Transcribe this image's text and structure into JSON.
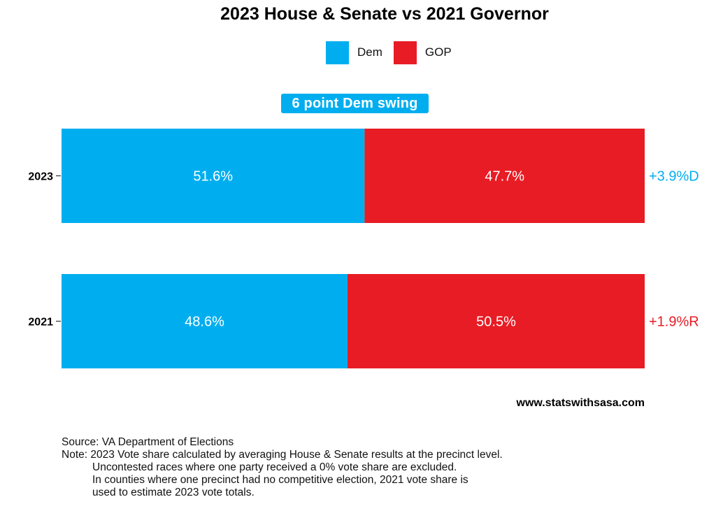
{
  "chart_data": {
    "type": "bar",
    "orientation": "horizontal",
    "stacked": true,
    "title": "2023 House & Senate vs 2021 Governor",
    "categories": [
      "2023",
      "2021"
    ],
    "series": [
      {
        "name": "Dem",
        "values": [
          51.6,
          48.6
        ],
        "labels": [
          "51.6%",
          "48.6%"
        ],
        "color": "#00AEEF"
      },
      {
        "name": "GOP",
        "values": [
          47.7,
          50.5
        ],
        "labels": [
          "47.7%",
          "50.5%"
        ],
        "color": "#E81C24"
      }
    ],
    "margins": [
      {
        "category": "2023",
        "label": "+3.9%D",
        "color": "#00AEEF"
      },
      {
        "category": "2021",
        "label": "+1.9%R",
        "color": "#E81C24"
      }
    ],
    "annotation": "6 point Dem swing",
    "legend_position": "top",
    "grid": false
  },
  "legend": {
    "dem_label": "Dem",
    "gop_label": "GOP"
  },
  "colors": {
    "dem": "#00AEEF",
    "gop": "#E81C24"
  },
  "footer": {
    "website": "www.statswithsasa.com",
    "source": "Source: VA Department of Elections",
    "note_lines": [
      "Note: 2023 Vote share calculated by averaging House & Senate results at the precinct level.",
      "Uncontested races where one party received a 0% vote share are excluded.",
      "In counties where one precinct had no competitive election, 2021 vote share is",
      "used to estimate 2023 vote totals."
    ]
  }
}
